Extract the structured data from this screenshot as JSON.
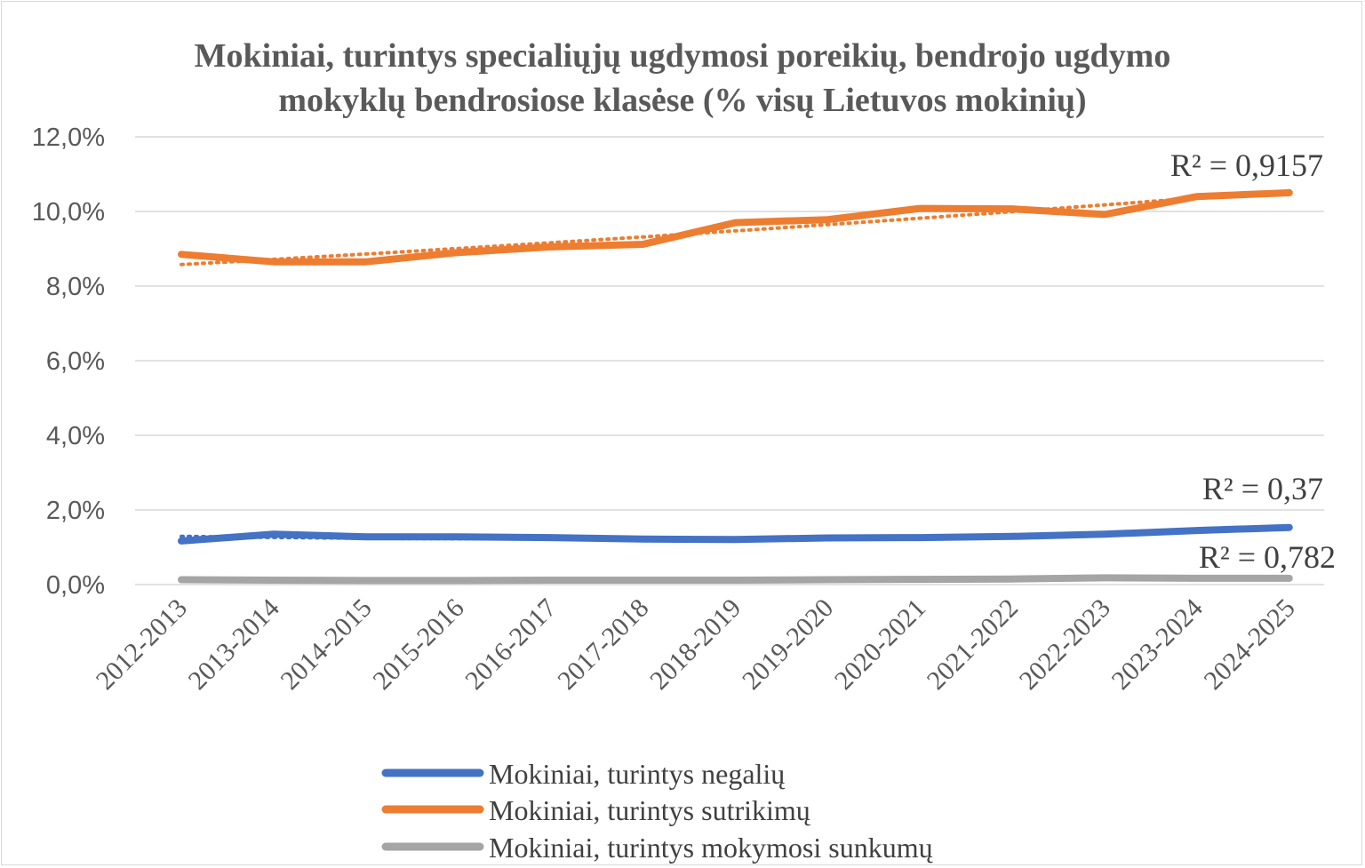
{
  "chart_data": {
    "type": "line",
    "title": "Mokiniai, turintys specialiųjų ugdymosi poreikių, bendrojo ugdymo mokyklų bendrosiose klasėse (% visų Lietuvos mokinių)",
    "title_lines": [
      "Mokiniai, turintys specialiųjų ugdymosi poreikių, bendrojo ugdymo",
      "mokyklų bendrosiose klasėse (% visų Lietuvos mokinių)"
    ],
    "categories": [
      "2012-2013",
      "2013-2014",
      "2014-2015",
      "2015-2016",
      "2016-2017",
      "2017-2018",
      "2018-2019",
      "2019-2020",
      "2020-2021",
      "2021-2022",
      "2022-2023",
      "2023-2024",
      "2024-2025"
    ],
    "ylim": [
      0,
      12
    ],
    "yticks": [
      0,
      2,
      4,
      6,
      8,
      10,
      12
    ],
    "ytick_labels": [
      "0,0%",
      "2,0%",
      "4,0%",
      "6,0%",
      "8,0%",
      "10,0%",
      "12,0%"
    ],
    "grid": true,
    "legend_position": "bottom",
    "series": [
      {
        "name": "Mokiniai, turintys negalių",
        "color": "#4472C4",
        "values": [
          1.17,
          1.35,
          1.28,
          1.28,
          1.26,
          1.22,
          1.21,
          1.25,
          1.26,
          1.29,
          1.35,
          1.45,
          1.53
        ],
        "trendline": "polynomial",
        "r2_label": "R² = 0,37"
      },
      {
        "name": "Mokiniai, turintys sutrikimų",
        "color": "#ED7D31",
        "values": [
          8.85,
          8.65,
          8.65,
          8.9,
          9.05,
          9.12,
          9.7,
          9.78,
          10.08,
          10.07,
          9.92,
          10.4,
          10.5
        ],
        "trendline": "polynomial",
        "r2_label": "R² = 0,9157"
      },
      {
        "name": "Mokiniai, turintys mokymosi sunkumų",
        "color": "#A5A5A5",
        "values": [
          0.13,
          0.12,
          0.11,
          0.11,
          0.12,
          0.12,
          0.12,
          0.13,
          0.14,
          0.15,
          0.18,
          0.17,
          0.17
        ],
        "trendline": "polynomial",
        "r2_label": "R² = 0,782"
      }
    ]
  }
}
